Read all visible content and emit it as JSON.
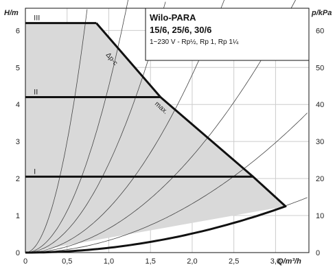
{
  "chart_data": {
    "type": "line",
    "title": "Wilo-PARA",
    "subtitle": "15/6, 25/6, 30/6",
    "spec": "1~230 V - Rp½, Rp 1, Rp 1¼",
    "xlabel": "Q/m³/h",
    "ylabel_left": "H/m",
    "ylabel_right": "p/kPa",
    "xlim": [
      0,
      3.4
    ],
    "ylim_left": [
      0,
      6.6
    ],
    "ylim_right": [
      0,
      66
    ],
    "x_ticks": [
      "0",
      "0,5",
      "1,0",
      "1,5",
      "2,0",
      "2,5",
      "3,0"
    ],
    "x_tick_values": [
      0,
      0.5,
      1.0,
      1.5,
      2.0,
      2.5,
      3.0
    ],
    "y_left_ticks": [
      "0",
      "1",
      "2",
      "3",
      "4",
      "5",
      "6"
    ],
    "y_left_tick_values": [
      0,
      1,
      2,
      3,
      4,
      5,
      6
    ],
    "y_right_ticks": [
      "0",
      "10",
      "20",
      "30",
      "40",
      "50",
      "60"
    ],
    "y_right_tick_values": [
      0,
      10,
      20,
      30,
      40,
      50,
      60
    ],
    "grid": true,
    "series": [
      {
        "name": "III",
        "x": [
          0,
          0.85
        ],
        "y": [
          6.2,
          6.2
        ]
      },
      {
        "name": "II",
        "x": [
          0,
          1.62
        ],
        "y": [
          4.2,
          4.2
        ]
      },
      {
        "name": "I",
        "x": [
          0,
          2.73
        ],
        "y": [
          2.05,
          2.05
        ]
      }
    ],
    "envelope": {
      "x": [
        0,
        0.85,
        1.62,
        2.73,
        3.12,
        0,
        0
      ],
      "y": [
        6.2,
        6.2,
        4.2,
        2.05,
        1.25,
        0,
        6.2
      ]
    },
    "curve_labels": [
      "Δp-c",
      "max."
    ],
    "system_curve_k": [
      12.0,
      4.5,
      2.4,
      1.2,
      0.65,
      0.33,
      0.13
    ]
  },
  "colors": {
    "fill": "#d9d9d9",
    "line": "#111111",
    "grid": "#cccccc",
    "system_curve": "#444444"
  }
}
